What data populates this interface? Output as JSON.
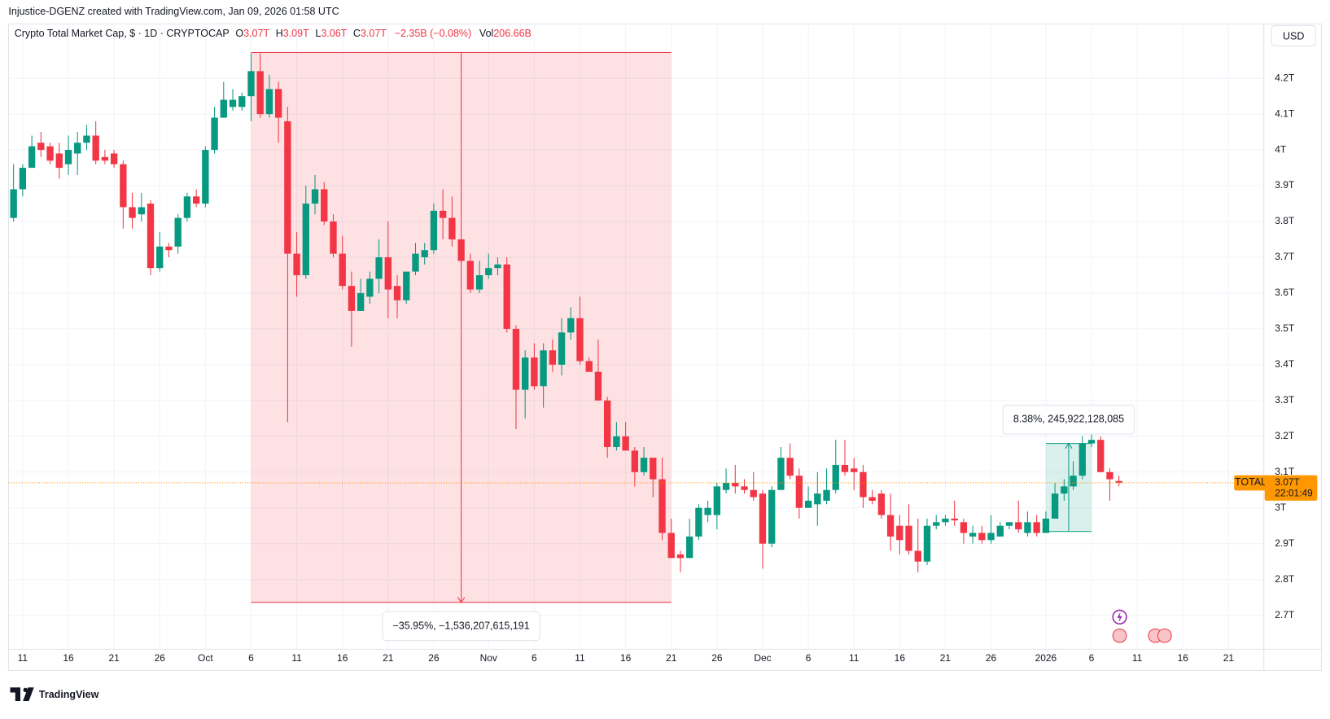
{
  "header": {
    "credit": "Injustice-DGENZ created with TradingView.com, Jan 09, 2026 01:58 UTC",
    "symbol": "Crypto Total Market Cap, $ · 1D · CRYPTOCAP",
    "ohlc": [
      {
        "key": "O",
        "value": "3.07T"
      },
      {
        "key": "H",
        "value": "3.09T"
      },
      {
        "key": "L",
        "value": "3.06T"
      },
      {
        "key": "C",
        "value": "3.07T"
      }
    ],
    "change": "−2.35B (−0.08%)",
    "volume_key": "Vol",
    "volume": "206.66B",
    "currency": "USD"
  },
  "brand": "TradingView",
  "chart_data": {
    "type": "candlestick",
    "up_color": "#089981",
    "down_color": "#f23645",
    "grid": true,
    "categories": [
      null,
      "11",
      null,
      null,
      null,
      null,
      "16",
      null,
      null,
      null,
      null,
      "21",
      null,
      null,
      null,
      null,
      "26",
      null,
      null,
      null,
      null,
      "Oct",
      null,
      null,
      null,
      null,
      "6",
      null,
      null,
      null,
      null,
      "11",
      null,
      null,
      null,
      null,
      "16",
      null,
      null,
      null,
      null,
      "21",
      null,
      null,
      null,
      null,
      "26",
      null,
      null,
      null,
      null,
      null,
      "Nov",
      null,
      null,
      null,
      null,
      "6",
      null,
      null,
      null,
      null,
      "11",
      null,
      null,
      null,
      null,
      "16",
      null,
      null,
      null,
      null,
      "21",
      null,
      null,
      null,
      null,
      "26",
      null,
      null,
      null,
      null,
      "Dec",
      null,
      null,
      null,
      null,
      "6",
      null,
      null,
      null,
      null,
      "11",
      null,
      null,
      null,
      null,
      "16",
      null,
      null,
      null,
      null,
      "21",
      null,
      null,
      null,
      null,
      "26",
      null,
      null,
      null,
      null,
      null,
      "2026",
      null,
      null,
      null,
      null,
      "6",
      null,
      null,
      null,
      null,
      "11",
      null,
      null,
      null,
      null,
      "16",
      null,
      null,
      null,
      null,
      "21"
    ],
    "open": [
      3.81,
      3.89,
      3.95,
      4.02,
      4.01,
      3.99,
      3.96,
      3.99,
      4.02,
      4.04,
      3.98,
      3.99,
      3.96,
      3.84,
      3.82,
      3.85,
      3.67,
      3.73,
      3.73,
      3.81,
      3.87,
      3.85,
      4.0,
      4.09,
      4.12,
      4.12,
      4.15,
      4.22,
      4.1,
      4.17,
      4.08,
      3.71,
      3.65,
      3.85,
      3.89,
      3.8,
      3.71,
      3.62,
      3.55,
      3.59,
      3.64,
      3.7,
      3.62,
      3.58,
      3.66,
      3.7,
      3.72,
      3.83,
      3.81,
      3.75,
      3.69,
      3.61,
      3.65,
      3.67,
      3.68,
      3.5,
      3.33,
      3.42,
      3.34,
      3.44,
      3.4,
      3.49,
      3.53,
      3.41,
      3.38,
      3.3,
      3.17,
      3.2,
      3.16,
      3.1,
      3.14,
      3.08,
      2.93,
      2.87,
      2.86,
      2.92,
      2.98,
      2.98,
      3.05,
      3.07,
      3.06,
      3.05,
      3.04,
      2.9,
      3.05,
      3.14,
      3.09,
      3.0,
      3.01,
      3.02,
      3.05,
      3.12,
      3.11,
      3.1,
      3.03,
      3.04,
      2.98,
      2.95,
      2.95,
      2.88,
      2.85,
      2.95,
      2.96,
      2.97,
      2.96,
      2.92,
      2.93,
      2.91,
      2.92,
      2.95,
      2.96,
      2.93,
      2.96,
      2.93,
      2.97,
      3.04,
      3.06,
      3.09,
      3.18,
      3.19,
      3.1,
      3.075,
      null,
      null,
      null,
      null,
      null,
      null,
      null,
      null,
      null,
      null,
      null,
      null
    ],
    "high": [
      3.96,
      3.96,
      4.04,
      4.05,
      4.02,
      4.02,
      4.04,
      4.05,
      4.07,
      4.08,
      4.0,
      4.0,
      3.97,
      3.88,
      3.88,
      3.86,
      3.77,
      3.74,
      3.82,
      3.88,
      3.89,
      4.01,
      4.12,
      4.19,
      4.17,
      4.16,
      4.27,
      4.27,
      4.21,
      4.19,
      4.12,
      3.77,
      3.9,
      3.93,
      3.91,
      3.82,
      3.76,
      3.66,
      3.64,
      3.66,
      3.75,
      3.8,
      3.65,
      3.66,
      3.74,
      3.74,
      3.85,
      3.89,
      3.87,
      3.75,
      3.71,
      3.69,
      3.71,
      3.7,
      3.7,
      3.51,
      3.44,
      3.46,
      3.46,
      3.47,
      3.53,
      3.56,
      3.59,
      3.42,
      3.47,
      3.31,
      3.24,
      3.24,
      3.17,
      3.17,
      3.14,
      3.14,
      2.97,
      2.88,
      2.97,
      3.01,
      3.02,
      3.07,
      3.11,
      3.12,
      3.08,
      3.1,
      3.05,
      3.06,
      3.17,
      3.18,
      3.11,
      3.06,
      3.1,
      3.11,
      3.19,
      3.19,
      3.14,
      3.12,
      3.05,
      3.05,
      3.04,
      2.98,
      3.01,
      2.97,
      2.97,
      2.98,
      2.98,
      3.02,
      2.97,
      2.95,
      2.95,
      2.98,
      2.96,
      2.96,
      3.02,
      2.99,
      2.98,
      2.99,
      3.07,
      3.08,
      3.13,
      3.2,
      3.22,
      3.2,
      3.11,
      3.09,
      null,
      null,
      null,
      null,
      null,
      null,
      null,
      null,
      null,
      null,
      null,
      null
    ],
    "low": [
      3.8,
      3.87,
      3.95,
      3.98,
      3.96,
      3.92,
      3.93,
      3.93,
      4.0,
      3.96,
      3.96,
      3.95,
      3.78,
      3.78,
      3.8,
      3.65,
      3.66,
      3.7,
      3.71,
      3.8,
      3.84,
      3.84,
      3.99,
      4.09,
      4.11,
      4.11,
      4.08,
      4.09,
      4.09,
      4.02,
      3.24,
      3.59,
      3.64,
      3.82,
      3.79,
      3.7,
      3.61,
      3.45,
      3.55,
      3.57,
      3.6,
      3.53,
      3.53,
      3.57,
      3.65,
      3.68,
      3.71,
      3.75,
      3.73,
      3.68,
      3.6,
      3.6,
      3.64,
      3.65,
      3.49,
      3.22,
      3.25,
      3.33,
      3.28,
      3.38,
      3.37,
      3.47,
      3.4,
      3.38,
      3.3,
      3.14,
      3.16,
      3.16,
      3.06,
      3.09,
      3.03,
      2.91,
      2.86,
      2.82,
      2.86,
      2.91,
      2.96,
      2.94,
      3.04,
      3.04,
      3.04,
      3.02,
      2.83,
      2.89,
      3.05,
      3.08,
      2.97,
      3.0,
      2.95,
      3.01,
      3.04,
      3.09,
      3.05,
      3.0,
      3.01,
      2.97,
      2.88,
      2.87,
      2.87,
      2.82,
      2.84,
      2.94,
      2.95,
      2.95,
      2.9,
      2.9,
      2.9,
      2.9,
      2.92,
      2.94,
      2.93,
      2.92,
      2.92,
      2.93,
      2.97,
      3.02,
      3.05,
      3.08,
      3.17,
      3.1,
      3.02,
      3.06,
      null,
      null,
      null,
      null,
      null,
      null,
      null,
      null,
      null,
      null,
      null,
      null
    ],
    "close": [
      3.89,
      3.95,
      4.01,
      4.0,
      3.97,
      3.95,
      4.0,
      4.02,
      4.04,
      3.97,
      3.97,
      3.96,
      3.84,
      3.81,
      3.84,
      3.67,
      3.73,
      3.72,
      3.81,
      3.87,
      3.85,
      4.0,
      4.09,
      4.14,
      4.14,
      4.15,
      4.22,
      4.1,
      4.17,
      4.09,
      3.71,
      3.65,
      3.85,
      3.89,
      3.8,
      3.71,
      3.62,
      3.55,
      3.6,
      3.64,
      3.7,
      3.61,
      3.58,
      3.66,
      3.71,
      3.72,
      3.83,
      3.81,
      3.75,
      3.69,
      3.61,
      3.65,
      3.67,
      3.68,
      3.5,
      3.33,
      3.42,
      3.34,
      3.44,
      3.4,
      3.49,
      3.53,
      3.41,
      3.38,
      3.3,
      3.17,
      3.2,
      3.16,
      3.1,
      3.14,
      3.08,
      2.93,
      2.86,
      2.86,
      2.92,
      3.0,
      3.0,
      3.06,
      3.07,
      3.06,
      3.05,
      3.03,
      2.9,
      3.05,
      3.14,
      3.09,
      3.0,
      3.02,
      3.04,
      3.05,
      3.12,
      3.1,
      3.1,
      3.03,
      3.02,
      2.98,
      2.92,
      2.91,
      2.88,
      2.85,
      2.95,
      2.96,
      2.97,
      2.965,
      2.93,
      2.93,
      2.91,
      2.93,
      2.95,
      2.96,
      2.94,
      2.96,
      2.93,
      2.97,
      3.04,
      3.06,
      3.09,
      3.18,
      3.19,
      3.1,
      3.08,
      3.07,
      null,
      null,
      null,
      null,
      null,
      null,
      null,
      null,
      null,
      null,
      null,
      null
    ],
    "ylim": [
      2.605,
      4.352
    ],
    "yticks": [
      {
        "value": 2.7,
        "label": "2.7T"
      },
      {
        "value": 2.8,
        "label": "2.8T"
      },
      {
        "value": 2.9,
        "label": "2.9T"
      },
      {
        "value": 3.0,
        "label": "3T"
      },
      {
        "value": 3.1,
        "label": "3.1T"
      },
      {
        "value": 3.2,
        "label": "3.2T"
      },
      {
        "value": 3.3,
        "label": "3.3T"
      },
      {
        "value": 3.4,
        "label": "3.4T"
      },
      {
        "value": 3.5,
        "label": "3.5T"
      },
      {
        "value": 3.6,
        "label": "3.6T"
      },
      {
        "value": 3.7,
        "label": "3.7T"
      },
      {
        "value": 3.8,
        "label": "3.8T"
      },
      {
        "value": 3.9,
        "label": "3.9T"
      },
      {
        "value": 4.0,
        "label": "4T"
      },
      {
        "value": 4.1,
        "label": "4.1T"
      },
      {
        "value": 4.2,
        "label": "4.2T"
      }
    ],
    "last": {
      "value": 3.07,
      "label": "3.07T",
      "name": "TOTAL",
      "countdown": "22:01:49",
      "color": "#ff9800"
    },
    "measurements": [
      {
        "label": "−35.95%, −1,536,207,615,191",
        "start": 26,
        "end": 72,
        "high": 4.272,
        "low": 2.736,
        "direction": "down",
        "color": "#f23645"
      },
      {
        "label": "8.38%, 245,922,128,085",
        "start": 113,
        "end": 118,
        "high": 3.18,
        "low": 2.934,
        "direction": "up",
        "color": "#089981"
      }
    ]
  }
}
